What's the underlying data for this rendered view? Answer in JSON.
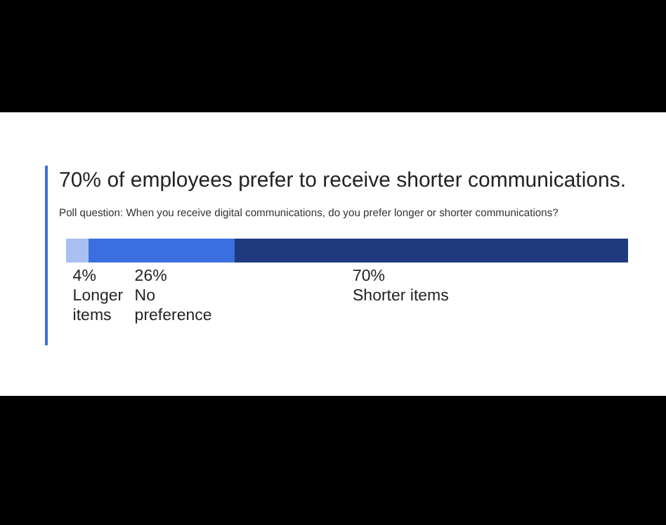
{
  "chart_data": {
    "type": "bar",
    "title": "70% of employees prefer to receive shorter communications.",
    "subtitle": "Poll question: When you receive digital communications, do you prefer longer or shorter communications?",
    "orientation": "horizontal",
    "stacked": true,
    "legend": false,
    "tick_labels": false,
    "categories": [
      null
    ],
    "series": [
      {
        "name": "Longer items",
        "color": "#a9c1f2",
        "values": [
          4
        ],
        "value_labels": [
          "4%"
        ]
      },
      {
        "name": "No preference",
        "color": "#3b6fe0",
        "values": [
          26
        ],
        "value_labels": [
          "26%"
        ]
      },
      {
        "name": "Shorter items",
        "color": "#1f3b7d",
        "values": [
          70
        ],
        "value_labels": [
          "70%"
        ]
      }
    ]
  }
}
